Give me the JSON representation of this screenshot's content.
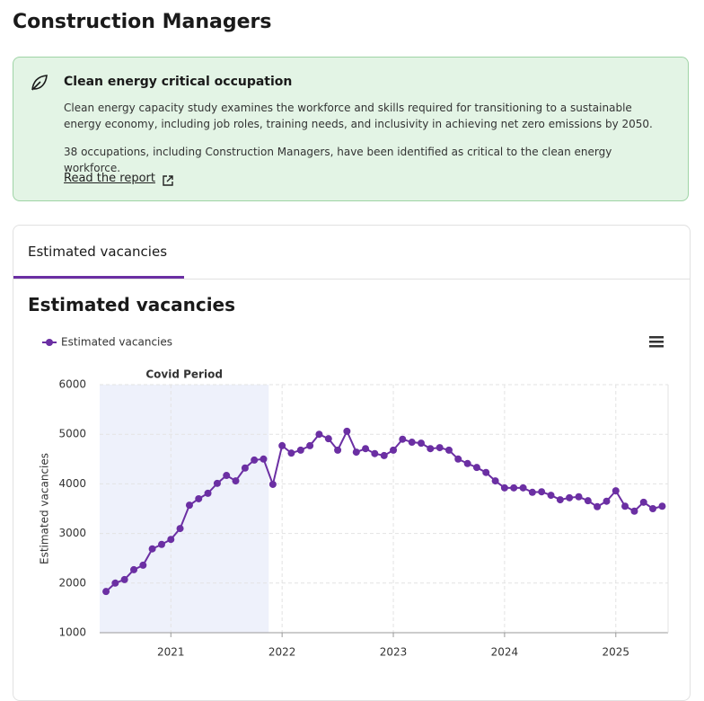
{
  "header": {
    "title": "Construction Managers"
  },
  "banner": {
    "title": "Clean energy critical occupation",
    "paragraphs": [
      "Clean energy capacity study examines the workforce and skills required for transitioning to a sustainable energy economy, including job roles, training needs, and inclusivity in achieving net zero emissions by 2050.",
      "38 occupations, including Construction Managers, have been identified as critical to the clean energy workforce."
    ],
    "link": "Read the report"
  },
  "tab": "Estimated vacancies",
  "heading": "Estimated vacancies",
  "chart_data": {
    "type": "line",
    "ylabel": "Estimated vacancies",
    "band": {
      "label": "Covid Period",
      "range": [
        2020.36,
        2021.88
      ],
      "color": "#eef1fb"
    },
    "x": [
      2020.417,
      2020.5,
      2020.583,
      2020.667,
      2020.75,
      2020.833,
      2020.917,
      2021.0,
      2021.083,
      2021.167,
      2021.25,
      2021.333,
      2021.417,
      2021.5,
      2021.583,
      2021.667,
      2021.75,
      2021.833,
      2021.917,
      2022.0,
      2022.083,
      2022.167,
      2022.25,
      2022.333,
      2022.417,
      2022.5,
      2022.583,
      2022.667,
      2022.75,
      2022.833,
      2022.917,
      2023.0,
      2023.083,
      2023.167,
      2023.25,
      2023.333,
      2023.417,
      2023.5,
      2023.583,
      2023.667,
      2023.75,
      2023.833,
      2023.917,
      2024.0,
      2024.083,
      2024.167,
      2024.25,
      2024.333,
      2024.417,
      2024.5,
      2024.583,
      2024.667,
      2024.75,
      2024.833,
      2024.917,
      2025.0,
      2025.083,
      2025.167,
      2025.25,
      2025.333,
      2025.417
    ],
    "series": [
      {
        "name": "Estimated vacancies",
        "color": "#6b2fa3",
        "values": [
          1830,
          2000,
          2070,
          2270,
          2360,
          2690,
          2780,
          2880,
          3100,
          3570,
          3700,
          3810,
          4010,
          4170,
          4060,
          4320,
          4480,
          4500,
          3990,
          4770,
          4620,
          4680,
          4770,
          5000,
          4910,
          4680,
          5060,
          4640,
          4710,
          4610,
          4570,
          4680,
          4900,
          4840,
          4820,
          4710,
          4730,
          4680,
          4500,
          4410,
          4330,
          4230,
          4060,
          3920,
          3920,
          3920,
          3830,
          3840,
          3770,
          3680,
          3720,
          3740,
          3660,
          3540,
          3650,
          3860,
          3550,
          3450,
          3630,
          3500,
          3550
        ]
      }
    ],
    "xlim": [
      2020.36,
      2025.47
    ],
    "xticks": [
      2021,
      2022,
      2023,
      2024,
      2025
    ],
    "ylim": [
      1000,
      6000
    ],
    "yticks": [
      1000,
      2000,
      3000,
      4000,
      5000,
      6000
    ],
    "grid": true,
    "legend": "top-left"
  }
}
